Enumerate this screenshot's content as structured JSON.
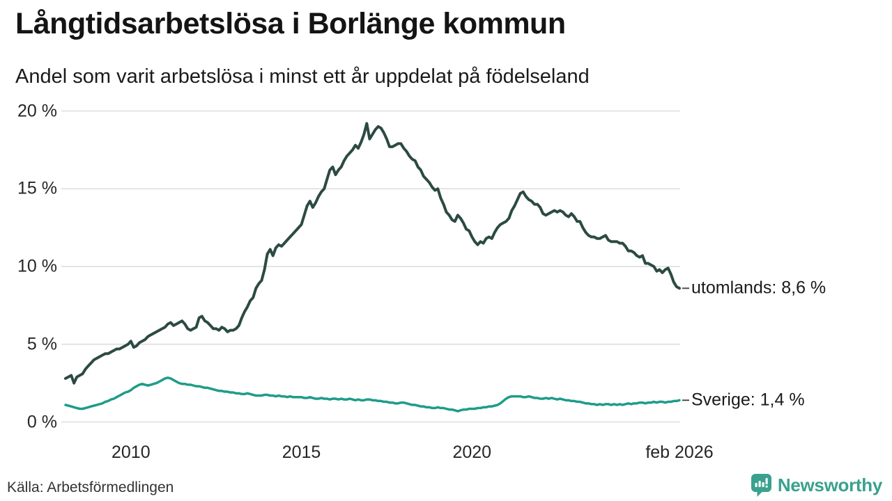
{
  "header": {
    "title": "Långtidsarbetslösa i Borlänge kommun",
    "subtitle": "Andel som varit arbetslösa i minst ett år uppdelat på födelseland"
  },
  "footer": {
    "source": "Källa: Arbetsförmedlingen",
    "brand": "Newsworthy",
    "brand_icon": "newsworthy-bar-chart-pin",
    "brand_color": "#3aa18e"
  },
  "chart_data": {
    "type": "line",
    "title": "Långtidsarbetslösa i Borlänge kommun",
    "subtitle": "Andel som varit arbetslösa i minst ett år uppdelat på födelseland",
    "x_frequency": "monthly",
    "x_start": "feb 2008",
    "x_end": "feb 2026",
    "ylim": [
      0,
      20
    ],
    "grid": "horizontal",
    "gridline_color": "#e4e4e4",
    "yticks": [
      {
        "value": 0,
        "label": "0 %"
      },
      {
        "value": 5,
        "label": "5 %"
      },
      {
        "value": 10,
        "label": "10 %"
      },
      {
        "value": 15,
        "label": "15 %"
      },
      {
        "value": 20,
        "label": "20 %"
      }
    ],
    "xticks": [
      {
        "month_index": 23,
        "label": "2010"
      },
      {
        "month_index": 83,
        "label": "2015"
      },
      {
        "month_index": 143,
        "label": "2020"
      },
      {
        "month_index": 216,
        "label": "feb 2026"
      }
    ],
    "series": [
      {
        "name": "utomlands",
        "color": "#2c4a43",
        "stroke_width": 4,
        "end_label": "utomlands: 8,6 %",
        "end_value": 8.6,
        "values": [
          2.8,
          2.9,
          3.0,
          2.5,
          2.9,
          3.0,
          3.1,
          3.4,
          3.6,
          3.8,
          4.0,
          4.1,
          4.2,
          4.3,
          4.4,
          4.4,
          4.5,
          4.6,
          4.7,
          4.7,
          4.8,
          4.9,
          5.0,
          5.2,
          4.8,
          4.9,
          5.1,
          5.2,
          5.3,
          5.5,
          5.6,
          5.7,
          5.8,
          5.9,
          6.0,
          6.1,
          6.3,
          6.4,
          6.2,
          6.3,
          6.4,
          6.5,
          6.3,
          6.0,
          5.9,
          6.0,
          6.1,
          6.7,
          6.8,
          6.5,
          6.4,
          6.2,
          6.0,
          6.0,
          5.9,
          6.1,
          6.0,
          5.8,
          5.9,
          5.9,
          6.0,
          6.2,
          6.7,
          7.1,
          7.4,
          7.8,
          8.0,
          8.6,
          8.9,
          9.1,
          9.8,
          10.8,
          11.1,
          10.7,
          11.2,
          11.4,
          11.3,
          11.5,
          11.7,
          11.9,
          12.1,
          12.3,
          12.5,
          12.7,
          13.3,
          13.9,
          14.2,
          13.8,
          14.1,
          14.5,
          14.8,
          15.0,
          15.6,
          16.2,
          16.4,
          15.9,
          16.2,
          16.4,
          16.8,
          17.1,
          17.3,
          17.5,
          17.8,
          17.6,
          18.0,
          18.5,
          19.2,
          18.2,
          18.5,
          18.8,
          19.0,
          18.9,
          18.6,
          18.2,
          17.7,
          17.7,
          17.8,
          17.9,
          17.9,
          17.6,
          17.4,
          17.1,
          16.9,
          16.8,
          16.4,
          16.2,
          15.8,
          15.6,
          15.4,
          15.1,
          14.9,
          15.0,
          14.4,
          14.0,
          13.5,
          13.3,
          13.0,
          12.9,
          13.3,
          13.1,
          12.8,
          12.4,
          12.3,
          11.9,
          11.6,
          11.4,
          11.6,
          11.5,
          11.8,
          11.9,
          11.8,
          12.2,
          12.5,
          12.7,
          12.8,
          12.9,
          13.1,
          13.6,
          13.9,
          14.3,
          14.7,
          14.8,
          14.5,
          14.3,
          14.2,
          14.0,
          14.0,
          13.8,
          13.4,
          13.3,
          13.4,
          13.5,
          13.6,
          13.5,
          13.6,
          13.5,
          13.3,
          13.2,
          13.4,
          13.2,
          12.9,
          12.9,
          12.5,
          12.2,
          12.0,
          11.9,
          11.9,
          11.8,
          11.8,
          11.9,
          12.0,
          11.7,
          11.6,
          11.6,
          11.6,
          11.5,
          11.5,
          11.3,
          11.0,
          11.0,
          10.9,
          10.7,
          10.6,
          10.7,
          10.2,
          10.2,
          10.1,
          10.0,
          9.7,
          9.8,
          9.6,
          9.8,
          9.9,
          9.5,
          9.0,
          8.7,
          8.6
        ]
      },
      {
        "name": "Sverige",
        "color": "#1e9c89",
        "stroke_width": 3.5,
        "end_label": "Sverige: 1,4 %",
        "end_value": 1.4,
        "values": [
          1.1,
          1.05,
          1.0,
          0.95,
          0.9,
          0.85,
          0.85,
          0.9,
          0.95,
          1.0,
          1.05,
          1.1,
          1.15,
          1.2,
          1.3,
          1.35,
          1.45,
          1.5,
          1.6,
          1.7,
          1.8,
          1.9,
          1.95,
          2.05,
          2.2,
          2.3,
          2.4,
          2.45,
          2.4,
          2.35,
          2.4,
          2.45,
          2.5,
          2.6,
          2.7,
          2.8,
          2.85,
          2.8,
          2.7,
          2.6,
          2.5,
          2.45,
          2.45,
          2.4,
          2.4,
          2.35,
          2.3,
          2.3,
          2.25,
          2.2,
          2.2,
          2.15,
          2.1,
          2.05,
          2.0,
          2.0,
          1.95,
          1.95,
          1.9,
          1.9,
          1.85,
          1.85,
          1.8,
          1.8,
          1.85,
          1.8,
          1.75,
          1.7,
          1.7,
          1.7,
          1.75,
          1.75,
          1.7,
          1.7,
          1.65,
          1.7,
          1.65,
          1.65,
          1.6,
          1.65,
          1.6,
          1.6,
          1.6,
          1.6,
          1.55,
          1.55,
          1.6,
          1.55,
          1.5,
          1.5,
          1.55,
          1.5,
          1.5,
          1.45,
          1.5,
          1.5,
          1.45,
          1.5,
          1.45,
          1.45,
          1.5,
          1.45,
          1.4,
          1.45,
          1.4,
          1.4,
          1.45,
          1.45,
          1.4,
          1.4,
          1.35,
          1.35,
          1.3,
          1.3,
          1.25,
          1.25,
          1.2,
          1.2,
          1.25,
          1.25,
          1.2,
          1.15,
          1.1,
          1.1,
          1.05,
          1.0,
          1.0,
          0.95,
          0.95,
          0.9,
          0.9,
          0.95,
          0.9,
          0.9,
          0.85,
          0.8,
          0.8,
          0.75,
          0.7,
          0.75,
          0.8,
          0.8,
          0.85,
          0.85,
          0.85,
          0.9,
          0.9,
          0.95,
          0.95,
          1.0,
          1.0,
          1.05,
          1.1,
          1.2,
          1.35,
          1.5,
          1.6,
          1.65,
          1.65,
          1.65,
          1.65,
          1.6,
          1.6,
          1.65,
          1.6,
          1.55,
          1.55,
          1.5,
          1.5,
          1.55,
          1.5,
          1.55,
          1.5,
          1.45,
          1.5,
          1.45,
          1.4,
          1.4,
          1.35,
          1.35,
          1.3,
          1.3,
          1.25,
          1.2,
          1.2,
          1.15,
          1.15,
          1.1,
          1.15,
          1.1,
          1.15,
          1.15,
          1.1,
          1.15,
          1.1,
          1.15,
          1.1,
          1.15,
          1.2,
          1.15,
          1.2,
          1.2,
          1.25,
          1.25,
          1.2,
          1.25,
          1.25,
          1.3,
          1.25,
          1.3,
          1.3,
          1.25,
          1.3,
          1.3,
          1.35,
          1.35,
          1.4
        ]
      }
    ]
  }
}
